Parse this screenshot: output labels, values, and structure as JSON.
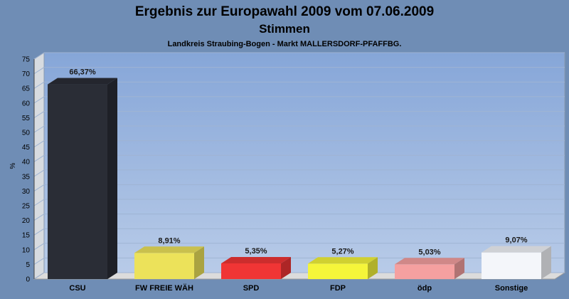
{
  "chart_data": {
    "type": "bar",
    "title": "Ergebnis zur Europawahl 2009 vom 07.06.2009",
    "subtitle": "Stimmen",
    "subsubtitle": "Landkreis Straubing-Bogen - Markt MALLERSDORF-PFAFFBG.",
    "ylabel": "%",
    "xlabel": "",
    "ylim": [
      0,
      75
    ],
    "yticks": [
      0,
      5,
      10,
      15,
      20,
      25,
      30,
      35,
      40,
      45,
      50,
      55,
      60,
      65,
      70,
      75
    ],
    "grid": true,
    "categories": [
      "CSU",
      "FW FREIE WÄH",
      "SPD",
      "FDP",
      "ödp",
      "Sonstige"
    ],
    "values": [
      66.37,
      8.91,
      5.35,
      5.27,
      5.03,
      9.07
    ],
    "value_labels": [
      "66,37%",
      "8,91%",
      "5,35%",
      "5,27%",
      "5,03%",
      "9,07%"
    ],
    "colors": [
      "#2a2d36",
      "#ece25a",
      "#f03535",
      "#f5f53a",
      "#f5a0a0",
      "#f4f6fa"
    ]
  }
}
